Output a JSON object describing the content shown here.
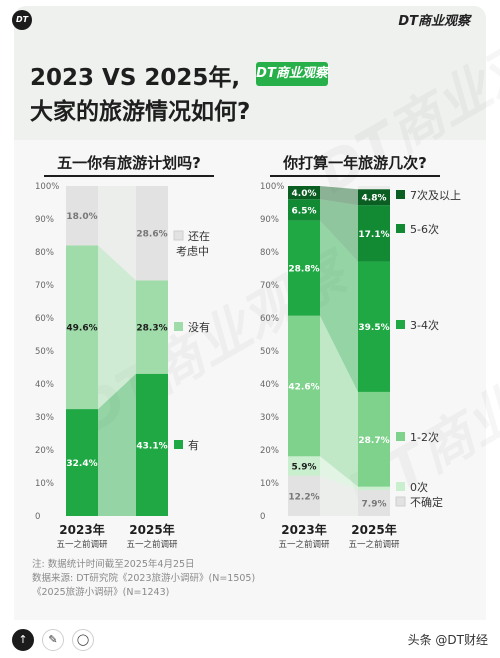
{
  "header": {
    "corner_logo": "DT",
    "brand": "DT商业观察",
    "title_line1": "2023 VS 2025年,",
    "title_line2": "大家的旅游情况如何?",
    "badge": "DT商业观察"
  },
  "notes": {
    "line1": "注: 数据统计时间截至2025年4月25日",
    "line2": "数据来源: DT研究院《2023旅游小调研》(N=1505)",
    "line3": "《2025旅游小调研》(N=1243)"
  },
  "bottom": {
    "source_label": "头条 @DT财经"
  },
  "colors": {
    "accent": "#27b04a",
    "track": "#ebedeb"
  },
  "chart_data": [
    {
      "type": "bar",
      "stacked": true,
      "title": "五一你有旅游计划吗?",
      "categories": [
        "2023年",
        "2025年"
      ],
      "category_sublabels": [
        "五一之前调研",
        "五一之前调研"
      ],
      "ylim": [
        0,
        100
      ],
      "yticks": [
        "0",
        "10%",
        "20%",
        "30%",
        "40%",
        "50%",
        "60%",
        "70%",
        "80%",
        "90%",
        "100%"
      ],
      "series": [
        {
          "name": "有",
          "values": [
            32.4,
            43.1
          ],
          "labels": [
            "32.4%",
            "43.1%"
          ],
          "color": "#1fa843",
          "label_color": "#ffffff"
        },
        {
          "name": "没有",
          "values": [
            49.6,
            28.3
          ],
          "labels": [
            "49.6%",
            "28.3%"
          ],
          "color": "#9fdca9",
          "label_color": "#1e1e1e"
        },
        {
          "name": "还在考虑中",
          "values": [
            18.0,
            28.6
          ],
          "labels": [
            "18.0%",
            "28.6%"
          ],
          "color": "#e1e2e1",
          "label_color": "#777777"
        }
      ],
      "legend": [
        "有",
        "没有",
        "还在考虑中"
      ],
      "legend_position": "right"
    },
    {
      "type": "bar",
      "stacked": true,
      "title": "你打算一年旅游几次?",
      "categories": [
        "2023年",
        "2025年"
      ],
      "category_sublabels": [
        "五一之前调研",
        "五一之前调研"
      ],
      "ylim": [
        0,
        100
      ],
      "yticks": [
        "0",
        "10%",
        "20%",
        "30%",
        "40%",
        "50%",
        "60%",
        "70%",
        "80%",
        "90%",
        "100%"
      ],
      "series": [
        {
          "name": "不确定",
          "values": [
            12.2,
            7.9
          ],
          "labels": [
            "12.2%",
            "7.9%"
          ],
          "color": "#e1e2e1",
          "label_color": "#777777"
        },
        {
          "name": "0次",
          "values": [
            5.9,
            1.0
          ],
          "labels": [
            "5.9%",
            ""
          ],
          "color": "#c9efce",
          "label_color": "#1e1e1e"
        },
        {
          "name": "1-2次",
          "values": [
            42.6,
            28.7
          ],
          "labels": [
            "42.6%",
            "28.7%"
          ],
          "color": "#7ed28b",
          "label_color": "#ffffff"
        },
        {
          "name": "3-4次",
          "values": [
            28.8,
            39.5
          ],
          "labels": [
            "28.8%",
            "39.5%"
          ],
          "color": "#1fa843",
          "label_color": "#ffffff"
        },
        {
          "name": "5-6次",
          "values": [
            6.5,
            17.1
          ],
          "labels": [
            "6.5%",
            "17.1%"
          ],
          "color": "#128a34",
          "label_color": "#ffffff"
        },
        {
          "name": "7次及以上",
          "values": [
            4.0,
            4.8
          ],
          "labels": [
            "4.0%",
            "4.8%"
          ],
          "color": "#0b5e22",
          "label_color": "#ffffff"
        }
      ],
      "legend": [
        "7次及以上",
        "5-6次",
        "3-4次",
        "1-2次",
        "0次",
        "不确定"
      ],
      "legend_position": "right"
    }
  ]
}
